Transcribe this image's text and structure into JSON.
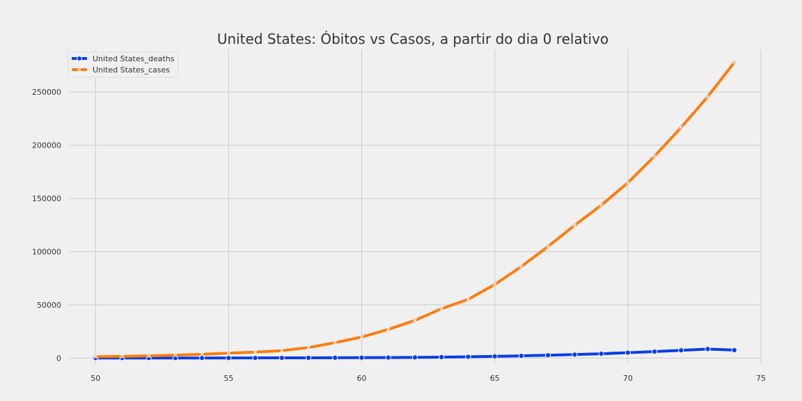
{
  "chart_data": {
    "type": "line",
    "title": "United States: Óbitos vs Casos, a partir do dia 0 relativo",
    "xlabel": "",
    "ylabel": "",
    "xlim": [
      49,
      75
    ],
    "ylim": [
      -5000,
      290000
    ],
    "xticks": [
      50,
      55,
      60,
      65,
      70,
      75
    ],
    "yticks": [
      0,
      50000,
      100000,
      150000,
      200000,
      250000
    ],
    "grid": true,
    "legend_position": "top-left",
    "x": [
      50,
      51,
      52,
      53,
      54,
      55,
      56,
      57,
      58,
      59,
      60,
      61,
      62,
      63,
      64,
      65,
      66,
      67,
      68,
      69,
      70,
      71,
      72,
      73,
      74
    ],
    "series": [
      {
        "name": "United States_deaths",
        "color": "#0a3de8",
        "marker": "circle",
        "values": [
          40,
          50,
          60,
          80,
          110,
          140,
          170,
          220,
          260,
          330,
          410,
          500,
          650,
          900,
          1200,
          1600,
          2100,
          2700,
          3300,
          4100,
          5100,
          6100,
          7300,
          8500,
          7500
        ]
      },
      {
        "name": "United States_cases",
        "color": "#ff7c0e",
        "marker": "x",
        "values": [
          1300,
          1600,
          2100,
          2800,
          3600,
          4600,
          5600,
          7000,
          9900,
          14500,
          19800,
          26900,
          35400,
          46400,
          55200,
          69200,
          86000,
          104800,
          124700,
          143600,
          164700,
          189600,
          216700,
          245500,
          277900
        ]
      }
    ]
  }
}
